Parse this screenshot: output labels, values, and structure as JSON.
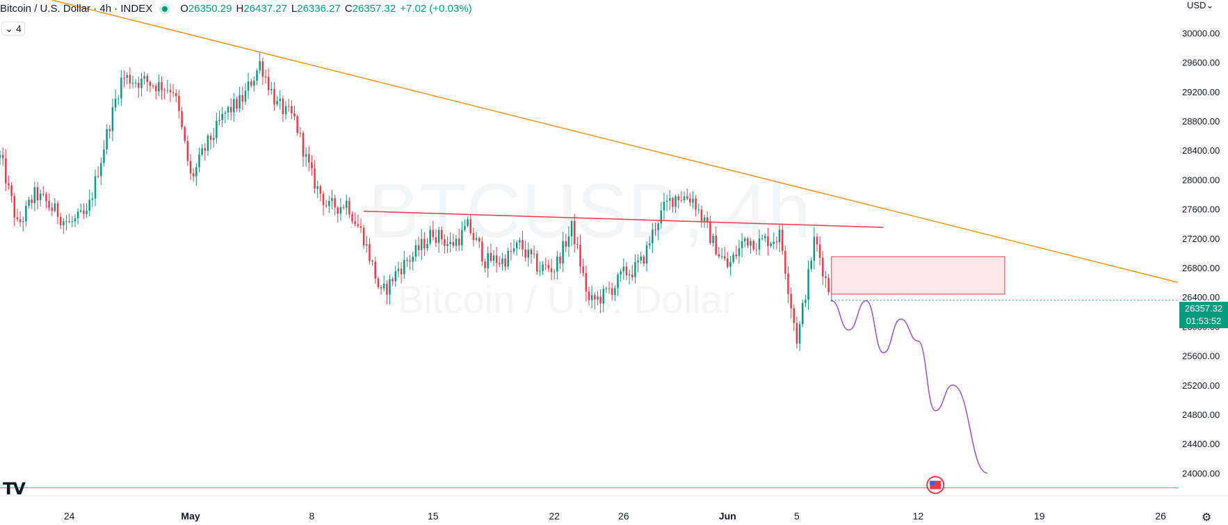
{
  "legend": {
    "symbol": "Bitcoin / U.S. Dollar · 4h · INDEX",
    "o_label": "O",
    "o_value": "26350.29",
    "h_label": "H",
    "h_value": "26437.27",
    "l_label": "L",
    "l_value": "26336.27",
    "c_label": "C",
    "c_value": "26357.32",
    "change": "+7.02 (+0.03%)"
  },
  "indicator_toggle": {
    "count": "4"
  },
  "currency": "USD",
  "price_tag": {
    "price": "26357.32",
    "countdown": "01:53:52"
  },
  "watermark": {
    "line1": "BTCUSD, 4h",
    "line2": "Bitcoin / U.S. Dollar"
  },
  "logo": "TV",
  "colors": {
    "up": "#089981",
    "down": "#F23645",
    "trendline": "#F7931A",
    "neckline": "#F23645",
    "zone_fill": "#FCE4E6",
    "zone_border": "#F23645",
    "projection": "#9C4DCC"
  },
  "chart_data": {
    "type": "candlestick",
    "timeframe": "4h",
    "ylim": [
      23700,
      30450
    ],
    "y_ticks": [
      24000,
      24400,
      24800,
      25200,
      25600,
      26000,
      26400,
      26800,
      27200,
      27600,
      28000,
      28400,
      28800,
      29200,
      29600,
      30000
    ],
    "y_tick_labels": [
      "24000.00",
      "24400.00",
      "24800.00",
      "25200.00",
      "25600.00",
      "26000.00",
      "26400.00",
      "26800.00",
      "27200.00",
      "27600.00",
      "28000.00",
      "28400.00",
      "28800.00",
      "29200.00",
      "29600.00",
      "30000.00"
    ],
    "x_range": [
      "2023-04-20",
      "2023-06-27"
    ],
    "x_ticks": [
      {
        "date": "2023-04-24",
        "label": "24"
      },
      {
        "date": "2023-05-01",
        "label": "May"
      },
      {
        "date": "2023-05-08",
        "label": "8"
      },
      {
        "date": "2023-05-15",
        "label": "15"
      },
      {
        "date": "2023-05-22",
        "label": "22"
      },
      {
        "date": "2023-05-26",
        "label": "26"
      },
      {
        "date": "2023-06-01",
        "label": "Jun"
      },
      {
        "date": "2023-06-05",
        "label": "5"
      },
      {
        "date": "2023-06-12",
        "label": "12"
      },
      {
        "date": "2023-06-19",
        "label": "19"
      },
      {
        "date": "2023-06-26",
        "label": "26"
      }
    ],
    "key_points": [
      {
        "date": "2023-04-20",
        "close": 28300
      },
      {
        "date": "2023-04-21",
        "close": 27350
      },
      {
        "date": "2023-04-22",
        "close": 27800
      },
      {
        "date": "2023-04-24",
        "close": 27400
      },
      {
        "date": "2023-04-25",
        "close": 27500
      },
      {
        "date": "2023-04-26",
        "close": 28500
      },
      {
        "date": "2023-04-27",
        "close": 29400
      },
      {
        "date": "2023-04-28",
        "close": 29350
      },
      {
        "date": "2023-04-29",
        "close": 29300
      },
      {
        "date": "2023-04-30",
        "close": 29250
      },
      {
        "date": "2023-05-01",
        "close": 28000
      },
      {
        "date": "2023-05-02",
        "close": 28500
      },
      {
        "date": "2023-05-03",
        "close": 28900
      },
      {
        "date": "2023-05-04",
        "close": 29100
      },
      {
        "date": "2023-05-05",
        "close": 29600
      },
      {
        "date": "2023-05-06",
        "close": 29000
      },
      {
        "date": "2023-05-07",
        "close": 28800
      },
      {
        "date": "2023-05-08",
        "close": 28000
      },
      {
        "date": "2023-05-09",
        "close": 27600
      },
      {
        "date": "2023-05-10",
        "close": 27700
      },
      {
        "date": "2023-05-11",
        "close": 27200
      },
      {
        "date": "2023-05-12",
        "close": 26400
      },
      {
        "date": "2023-05-13",
        "close": 26800
      },
      {
        "date": "2023-05-14",
        "close": 27000
      },
      {
        "date": "2023-05-15",
        "close": 27300
      },
      {
        "date": "2023-05-16",
        "close": 27100
      },
      {
        "date": "2023-05-17",
        "close": 27350
      },
      {
        "date": "2023-05-18",
        "close": 26900
      },
      {
        "date": "2023-05-19",
        "close": 26900
      },
      {
        "date": "2023-05-20",
        "close": 27100
      },
      {
        "date": "2023-05-21",
        "close": 26800
      },
      {
        "date": "2023-05-22",
        "close": 26800
      },
      {
        "date": "2023-05-23",
        "close": 27350
      },
      {
        "date": "2023-05-24",
        "close": 26300
      },
      {
        "date": "2023-05-25",
        "close": 26450
      },
      {
        "date": "2023-05-26",
        "close": 26700
      },
      {
        "date": "2023-05-27",
        "close": 26850
      },
      {
        "date": "2023-05-28",
        "close": 27500
      },
      {
        "date": "2023-05-29",
        "close": 27800
      },
      {
        "date": "2023-05-30",
        "close": 27750
      },
      {
        "date": "2023-05-31",
        "close": 27200
      },
      {
        "date": "2023-06-01",
        "close": 26800
      },
      {
        "date": "2023-06-02",
        "close": 27200
      },
      {
        "date": "2023-06-03",
        "close": 27150
      },
      {
        "date": "2023-06-04",
        "close": 27250
      },
      {
        "date": "2023-06-05",
        "close": 25800
      },
      {
        "date": "2023-06-06",
        "close": 27200
      },
      {
        "date": "2023-06-07",
        "close": 26350
      }
    ],
    "last": {
      "open": 26350.29,
      "high": 26437.27,
      "low": 26336.27,
      "close": 26357.32
    },
    "annotations": [
      {
        "type": "trendline",
        "name": "descending resistance",
        "from": {
          "date": "2023-04-23",
          "price": 30450
        },
        "to": {
          "date": "2023-06-27",
          "price": 26600
        }
      },
      {
        "type": "trendline",
        "name": "neckline",
        "from": {
          "date": "2023-05-11",
          "price": 27570
        },
        "to": {
          "date": "2023-06-10",
          "price": 27350
        }
      },
      {
        "type": "rectangle",
        "name": "supply zone",
        "from_date": "2023-06-07",
        "to_date": "2023-06-17",
        "top": 26950,
        "bottom": 26440
      },
      {
        "type": "horizontal_line",
        "price": 23800
      },
      {
        "type": "projection_path",
        "points": [
          {
            "date": "2023-06-07",
            "price": 26350
          },
          {
            "date": "2023-06-08",
            "price": 25950
          },
          {
            "date": "2023-06-09",
            "price": 26350
          },
          {
            "date": "2023-06-10",
            "price": 25640
          },
          {
            "date": "2023-06-11",
            "price": 26100
          },
          {
            "date": "2023-06-12",
            "price": 25800
          },
          {
            "date": "2023-06-13",
            "price": 24850
          },
          {
            "date": "2023-06-14",
            "price": 25200
          },
          {
            "date": "2023-06-16",
            "price": 24000
          }
        ]
      }
    ]
  }
}
